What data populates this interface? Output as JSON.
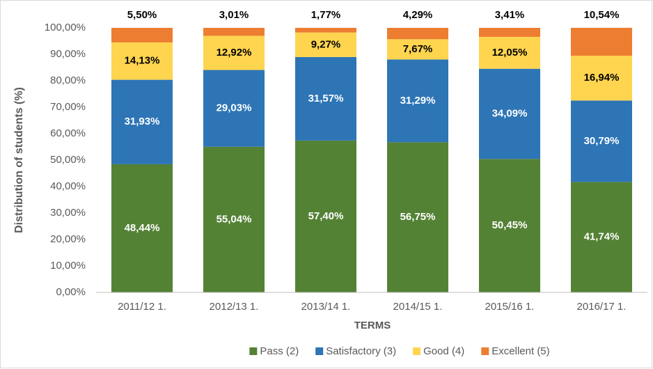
{
  "chart_data": {
    "type": "stacked-bar",
    "y_label": "Distribution of students (%)",
    "x_label": "TERMS",
    "categories": [
      "2011/12 1.",
      "2012/13 1.",
      "2013/14 1.",
      "2014/15 1.",
      "2015/16 1.",
      "2016/17 1."
    ],
    "series": [
      {
        "name": "Pass (2)",
        "color": "#548235",
        "label_color": "#ffffff",
        "values": [
          48.44,
          55.04,
          57.4,
          56.75,
          50.45,
          41.74
        ],
        "value_labels": [
          "48,44%",
          "55,04%",
          "57,40%",
          "56,75%",
          "50,45%",
          "41,74%"
        ]
      },
      {
        "name": "Satisfactory (3)",
        "color": "#2e75b6",
        "label_color": "#ffffff",
        "values": [
          31.93,
          29.03,
          31.57,
          31.29,
          34.09,
          30.79
        ],
        "value_labels": [
          "31,93%",
          "29,03%",
          "31,57%",
          "31,29%",
          "34,09%",
          "30,79%"
        ]
      },
      {
        "name": "Good (4)",
        "color": "#ffd54f",
        "label_color": "#000000",
        "values": [
          14.13,
          12.92,
          9.27,
          7.67,
          12.05,
          16.94
        ],
        "value_labels": [
          "14,13%",
          "12,92%",
          "9,27%",
          "7,67%",
          "12,05%",
          "16,94%"
        ]
      },
      {
        "name": "Excellent (5)",
        "color": "#ed7d31",
        "label_color": "#000000",
        "values": [
          5.5,
          3.01,
          1.77,
          4.29,
          3.41,
          10.54
        ],
        "value_labels": [
          "5,50%",
          "3,01%",
          "1,77%",
          "4,29%",
          "3,41%",
          "10,54%"
        ]
      }
    ],
    "ylim": [
      0,
      100
    ],
    "yticks": [
      {
        "value": 0,
        "label": "0,00%"
      },
      {
        "value": 10,
        "label": "10,00%"
      },
      {
        "value": 20,
        "label": "20,00%"
      },
      {
        "value": 30,
        "label": "30,00%"
      },
      {
        "value": 40,
        "label": "40,00%"
      },
      {
        "value": 50,
        "label": "50,00%"
      },
      {
        "value": 60,
        "label": "60,00%"
      },
      {
        "value": 70,
        "label": "70,00%"
      },
      {
        "value": 80,
        "label": "80,00%"
      },
      {
        "value": 90,
        "label": "90,00%"
      },
      {
        "value": 100,
        "label": "100,00%"
      }
    ],
    "grid": false,
    "legend": "bottom"
  }
}
